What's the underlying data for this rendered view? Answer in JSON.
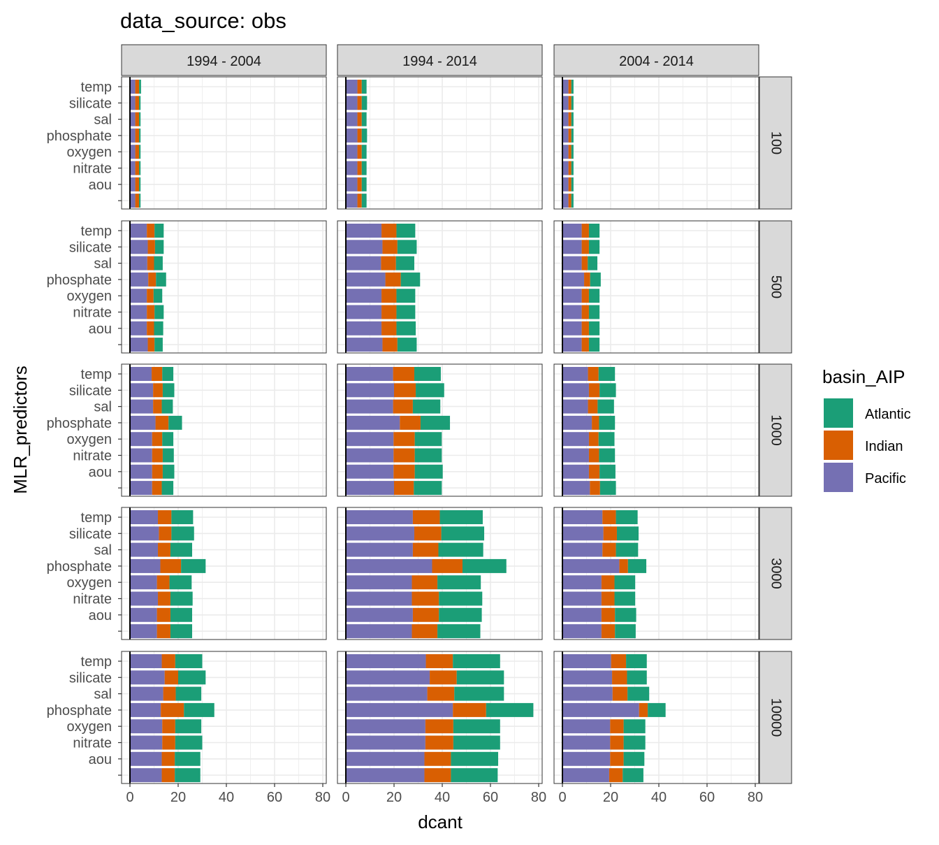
{
  "chart_data": {
    "type": "bar",
    "orientation": "horizontal",
    "stacked": true,
    "title": "data_source: obs",
    "xlabel": "dcant",
    "ylabel": "MLR_predictors",
    "xlim": [
      0,
      80
    ],
    "x_ticks": [
      "0",
      "20",
      "40",
      "60",
      "80"
    ],
    "grid": true,
    "legend_position": "right",
    "legend_title": "basin_AIP",
    "column_facets": [
      "1994 - 2004",
      "1994 - 2014",
      "2004 - 2014"
    ],
    "row_facets": [
      "100",
      "500",
      "1000",
      "3000",
      "10000"
    ],
    "categories": [
      "temp",
      "silicate",
      "sal",
      "phosphate",
      "oxygen",
      "nitrate",
      "aou",
      ""
    ],
    "series": [
      {
        "name": "Atlantic",
        "color": "#1b9e77"
      },
      {
        "name": "Indian",
        "color": "#d95f02"
      },
      {
        "name": "Pacific",
        "color": "#7570b3"
      }
    ],
    "panels": [
      {
        "row": "100",
        "col": "1994 - 2004",
        "pacific": [
          2.2,
          2.2,
          2.2,
          2.2,
          2.2,
          2.2,
          2.2,
          2.2
        ],
        "indian": [
          1.6,
          1.6,
          1.6,
          1.6,
          1.6,
          1.6,
          1.6,
          1.6
        ],
        "atlantic": [
          0.8,
          0.6,
          0.6,
          0.6,
          0.6,
          0.6,
          0.6,
          0.6
        ]
      },
      {
        "row": "100",
        "col": "1994 - 2014",
        "pacific": [
          4.8,
          4.8,
          4.8,
          4.8,
          4.8,
          4.8,
          4.8,
          4.8
        ],
        "indian": [
          1.8,
          1.8,
          1.8,
          1.8,
          1.8,
          1.8,
          1.8,
          1.8
        ],
        "atlantic": [
          2.0,
          2.2,
          2.0,
          2.2,
          2.0,
          2.0,
          2.0,
          2.0
        ]
      },
      {
        "row": "100",
        "col": "2004 - 2014",
        "pacific": [
          2.5,
          2.5,
          2.5,
          2.5,
          2.5,
          2.5,
          2.5,
          2.5
        ],
        "indian": [
          1.2,
          1.2,
          1.2,
          1.2,
          1.2,
          1.2,
          1.2,
          1.2
        ],
        "atlantic": [
          0.9,
          0.9,
          0.9,
          0.9,
          0.9,
          0.9,
          0.9,
          0.9
        ]
      },
      {
        "row": "500",
        "col": "1994 - 2004",
        "pacific": [
          7.0,
          7.4,
          7.2,
          7.6,
          7.0,
          7.0,
          7.0,
          7.4
        ],
        "indian": [
          3.2,
          3.0,
          2.8,
          3.2,
          2.8,
          3.2,
          3.0,
          2.8
        ],
        "atlantic": [
          3.8,
          3.6,
          3.6,
          4.2,
          3.6,
          3.8,
          3.8,
          3.4
        ]
      },
      {
        "row": "500",
        "col": "1994 - 2014",
        "pacific": [
          14.8,
          15.2,
          14.6,
          16.4,
          14.8,
          14.8,
          14.8,
          15.2
        ],
        "indian": [
          6.2,
          6.2,
          6.2,
          6.4,
          6.2,
          6.2,
          6.2,
          6.2
        ],
        "atlantic": [
          7.8,
          8.0,
          7.6,
          8.0,
          7.8,
          7.8,
          8.0,
          8.0
        ]
      },
      {
        "row": "500",
        "col": "2004 - 2014",
        "pacific": [
          8.0,
          8.0,
          8.0,
          9.0,
          8.0,
          8.0,
          8.0,
          8.0
        ],
        "indian": [
          3.0,
          3.0,
          2.5,
          2.5,
          3.0,
          3.0,
          3.0,
          3.0
        ],
        "atlantic": [
          4.4,
          4.4,
          4.0,
          4.4,
          4.4,
          4.4,
          4.4,
          4.4
        ]
      },
      {
        "row": "1000",
        "col": "1994 - 2004",
        "pacific": [
          9.0,
          9.6,
          9.6,
          10.6,
          9.2,
          9.2,
          9.2,
          9.2
        ],
        "indian": [
          4.4,
          4.0,
          3.6,
          5.4,
          4.2,
          4.4,
          4.4,
          4.0
        ],
        "atlantic": [
          4.6,
          4.8,
          4.6,
          5.6,
          4.6,
          4.6,
          4.8,
          4.8
        ]
      },
      {
        "row": "1000",
        "col": "1994 - 2014",
        "pacific": [
          19.6,
          20.0,
          19.6,
          22.4,
          19.8,
          19.8,
          19.8,
          20.0
        ],
        "indian": [
          8.8,
          9.0,
          8.2,
          8.6,
          8.8,
          8.8,
          8.8,
          8.2
        ],
        "atlantic": [
          11.0,
          11.8,
          11.4,
          12.2,
          11.2,
          11.2,
          11.6,
          11.6
        ]
      },
      {
        "row": "1000",
        "col": "2004 - 2014",
        "pacific": [
          10.6,
          11.0,
          10.6,
          12.2,
          11.0,
          11.0,
          11.0,
          11.4
        ],
        "indian": [
          4.4,
          4.4,
          4.0,
          3.0,
          4.0,
          4.2,
          4.4,
          4.2
        ],
        "atlantic": [
          6.8,
          6.8,
          6.8,
          6.6,
          6.6,
          6.6,
          6.6,
          6.6
        ]
      },
      {
        "row": "3000",
        "col": "1994 - 2004",
        "pacific": [
          11.6,
          12.0,
          11.6,
          12.6,
          11.2,
          11.6,
          11.2,
          11.2
        ],
        "indian": [
          5.6,
          5.2,
          5.2,
          8.6,
          5.2,
          5.2,
          5.6,
          5.6
        ],
        "atlantic": [
          9.0,
          9.4,
          9.0,
          10.2,
          9.2,
          9.2,
          9.0,
          9.0
        ]
      },
      {
        "row": "3000",
        "col": "1994 - 2014",
        "pacific": [
          27.8,
          28.4,
          27.8,
          35.8,
          27.4,
          27.4,
          27.8,
          27.4
        ],
        "indian": [
          11.2,
          11.2,
          10.6,
          12.6,
          10.6,
          11.2,
          10.8,
          10.6
        ],
        "atlantic": [
          17.8,
          17.8,
          18.6,
          18.2,
          18.0,
          18.0,
          17.8,
          17.8
        ]
      },
      {
        "row": "3000",
        "col": "2004 - 2014",
        "pacific": [
          16.6,
          17.0,
          16.6,
          23.6,
          16.2,
          16.2,
          16.2,
          16.2
        ],
        "indian": [
          5.6,
          5.6,
          5.6,
          3.6,
          5.4,
          5.4,
          5.6,
          5.6
        ],
        "atlantic": [
          9.0,
          9.0,
          9.2,
          7.6,
          8.6,
          8.6,
          8.8,
          8.6
        ]
      },
      {
        "row": "10000",
        "col": "1994 - 2004",
        "pacific": [
          13.2,
          14.4,
          13.8,
          12.8,
          13.4,
          13.4,
          13.2,
          13.2
        ],
        "indian": [
          5.6,
          5.6,
          5.2,
          9.6,
          5.4,
          5.4,
          5.4,
          5.4
        ],
        "atlantic": [
          11.2,
          11.4,
          10.6,
          12.6,
          10.8,
          11.2,
          10.6,
          10.6
        ]
      },
      {
        "row": "10000",
        "col": "1994 - 2014",
        "pacific": [
          33.2,
          34.8,
          33.8,
          44.4,
          33.0,
          33.0,
          32.6,
          32.6
        ],
        "indian": [
          11.2,
          11.2,
          11.2,
          13.8,
          11.6,
          11.6,
          11.0,
          11.0
        ],
        "atlantic": [
          19.6,
          19.6,
          20.6,
          19.6,
          19.4,
          19.4,
          19.6,
          19.4
        ]
      },
      {
        "row": "10000",
        "col": "2004 - 2014",
        "pacific": [
          20.2,
          20.6,
          20.8,
          31.8,
          19.8,
          19.8,
          19.8,
          19.4
        ],
        "indian": [
          6.2,
          6.2,
          6.2,
          3.6,
          5.6,
          5.6,
          5.6,
          5.6
        ],
        "atlantic": [
          8.6,
          8.2,
          9.0,
          7.4,
          9.0,
          9.0,
          8.6,
          8.6
        ]
      }
    ]
  }
}
